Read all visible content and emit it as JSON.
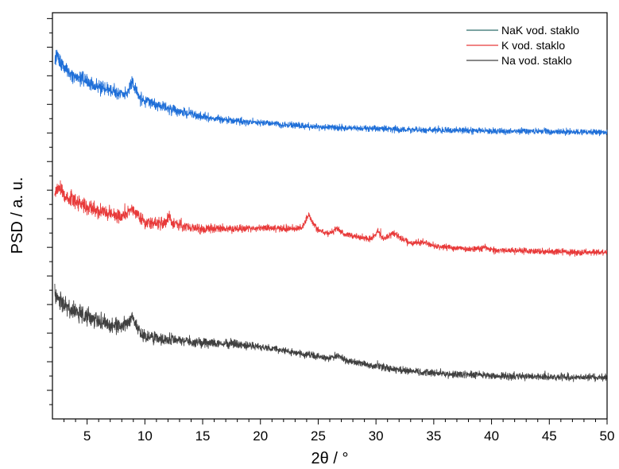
{
  "chart_data": {
    "type": "line",
    "title": "",
    "xlabel": "2θ / °",
    "ylabel": "PSD / a. u.",
    "xlim": [
      2,
      50
    ],
    "ylim": [
      0,
      1
    ],
    "x_ticks": [
      5,
      10,
      15,
      20,
      25,
      30,
      35,
      40,
      45,
      50
    ],
    "y_tick_labels_shown": false,
    "grid": false,
    "legend_position": "top-right",
    "series": [
      {
        "name": "NaK vod. staklo",
        "color": "#1f6fd8",
        "legend_color": "#2e6e6a",
        "noise": 0.0095,
        "points": [
          [
            2.2,
            0.872
          ],
          [
            2.4,
            0.899
          ],
          [
            2.7,
            0.88
          ],
          [
            3,
            0.865
          ],
          [
            3.5,
            0.852
          ],
          [
            4,
            0.843
          ],
          [
            5,
            0.83
          ],
          [
            6,
            0.817
          ],
          [
            7,
            0.808
          ],
          [
            7.8,
            0.8
          ],
          [
            8.3,
            0.8
          ],
          [
            8.7,
            0.815
          ],
          [
            8.9,
            0.828
          ],
          [
            9.2,
            0.81
          ],
          [
            9.6,
            0.787
          ],
          [
            10,
            0.783
          ],
          [
            11,
            0.774
          ],
          [
            12,
            0.765
          ],
          [
            13,
            0.758
          ],
          [
            14,
            0.75
          ],
          [
            15,
            0.744
          ],
          [
            16,
            0.74
          ],
          [
            17,
            0.736
          ],
          [
            18,
            0.733
          ],
          [
            20,
            0.729
          ],
          [
            22,
            0.724
          ],
          [
            25,
            0.719
          ],
          [
            28,
            0.716
          ],
          [
            30,
            0.714
          ],
          [
            35,
            0.711
          ],
          [
            40,
            0.709
          ],
          [
            45,
            0.707
          ],
          [
            50,
            0.706
          ]
        ]
      },
      {
        "name": "K vod. staklo",
        "color": "#e83a3a",
        "legend_color": "#e83a3a",
        "noise": 0.01,
        "points": [
          [
            2.2,
            0.565
          ],
          [
            2.5,
            0.565
          ],
          [
            3,
            0.552
          ],
          [
            4,
            0.537
          ],
          [
            5,
            0.523
          ],
          [
            6,
            0.512
          ],
          [
            7,
            0.505
          ],
          [
            8,
            0.498
          ],
          [
            8.6,
            0.508
          ],
          [
            8.9,
            0.517
          ],
          [
            9.3,
            0.5
          ],
          [
            10,
            0.485
          ],
          [
            11,
            0.482
          ],
          [
            11.8,
            0.484
          ],
          [
            12.1,
            0.495
          ],
          [
            12.4,
            0.482
          ],
          [
            14,
            0.47
          ],
          [
            16,
            0.468
          ],
          [
            18,
            0.468
          ],
          [
            20,
            0.47
          ],
          [
            22,
            0.468
          ],
          [
            23.6,
            0.47
          ],
          [
            24.2,
            0.505
          ],
          [
            24.5,
            0.482
          ],
          [
            25.2,
            0.46
          ],
          [
            26,
            0.456
          ],
          [
            26.6,
            0.47
          ],
          [
            27.2,
            0.455
          ],
          [
            28,
            0.45
          ],
          [
            29.5,
            0.443
          ],
          [
            30.2,
            0.462
          ],
          [
            30.6,
            0.443
          ],
          [
            31.2,
            0.452
          ],
          [
            31.7,
            0.458
          ],
          [
            32.2,
            0.442
          ],
          [
            33,
            0.432
          ],
          [
            34,
            0.436
          ],
          [
            35,
            0.425
          ],
          [
            37,
            0.42
          ],
          [
            39,
            0.418
          ],
          [
            39.4,
            0.424
          ],
          [
            39.8,
            0.416
          ],
          [
            42,
            0.414
          ],
          [
            45,
            0.412
          ],
          [
            48,
            0.41
          ],
          [
            50,
            0.41
          ]
        ]
      },
      {
        "name": "Na vod. staklo",
        "color": "#404040",
        "legend_color": "#404040",
        "noise": 0.011,
        "points": [
          [
            2.2,
            0.305
          ],
          [
            2.5,
            0.3
          ],
          [
            3,
            0.28
          ],
          [
            4,
            0.262
          ],
          [
            5,
            0.25
          ],
          [
            6,
            0.24
          ],
          [
            7,
            0.232
          ],
          [
            8,
            0.227
          ],
          [
            8.6,
            0.238
          ],
          [
            8.9,
            0.253
          ],
          [
            9.3,
            0.228
          ],
          [
            9.8,
            0.205
          ],
          [
            10.5,
            0.199
          ],
          [
            12,
            0.196
          ],
          [
            14,
            0.191
          ],
          [
            16,
            0.186
          ],
          [
            17.6,
            0.186
          ],
          [
            18,
            0.183
          ],
          [
            20,
            0.177
          ],
          [
            22,
            0.168
          ],
          [
            24,
            0.158
          ],
          [
            26,
            0.15
          ],
          [
            26.7,
            0.157
          ],
          [
            27.3,
            0.145
          ],
          [
            28,
            0.14
          ],
          [
            30,
            0.13
          ],
          [
            32,
            0.121
          ],
          [
            35,
            0.113
          ],
          [
            40,
            0.106
          ],
          [
            45,
            0.103
          ],
          [
            50,
            0.102
          ]
        ]
      }
    ]
  }
}
